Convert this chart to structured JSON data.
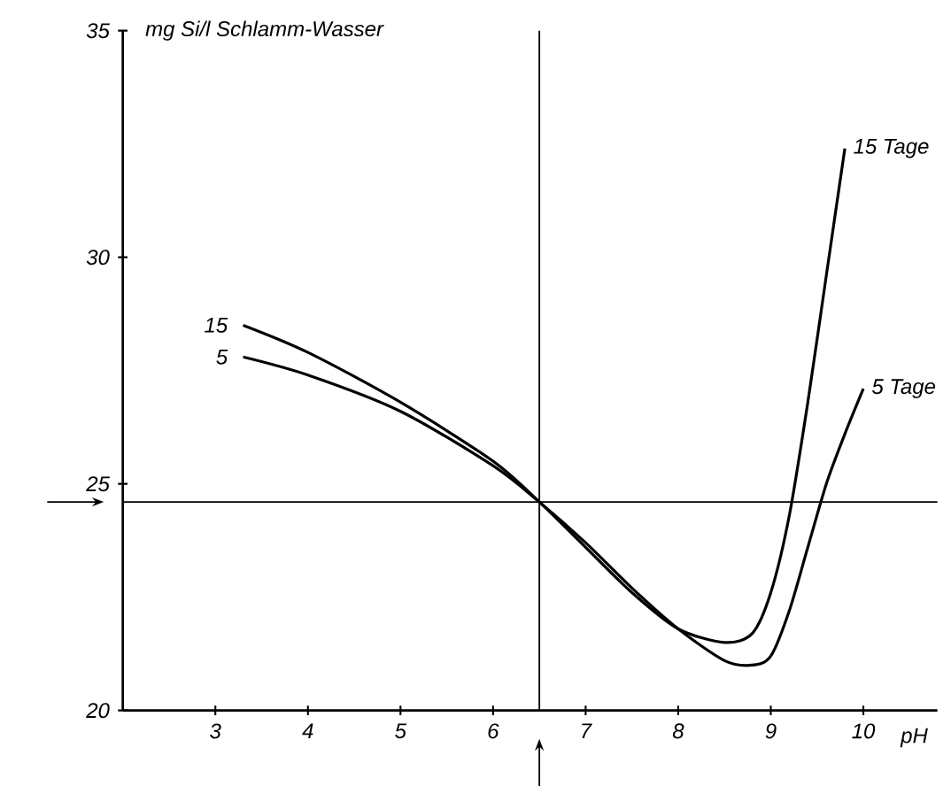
{
  "chart_data": {
    "type": "line",
    "ylabel": "mg Si/l Schlamm-Wasser",
    "xlabel": "pH",
    "xlim": [
      2,
      10.8
    ],
    "ylim": [
      20,
      35
    ],
    "xticks": [
      3,
      4,
      5,
      6,
      7,
      8,
      9,
      10
    ],
    "yticks": [
      20,
      25,
      30,
      35
    ],
    "grid": false,
    "legend": false,
    "marker": "none",
    "line_style": "solid",
    "series": [
      {
        "name": "15 Tage",
        "color": "#000000",
        "x": [
          3.3,
          4,
          5,
          6,
          6.5,
          7,
          7.5,
          8,
          8.5,
          8.8,
          9,
          9.2,
          9.4,
          9.6,
          9.8
        ],
        "values": [
          28.5,
          27.9,
          26.8,
          25.5,
          24.6,
          23.6,
          22.6,
          21.8,
          21.5,
          21.7,
          22.6,
          24.3,
          26.8,
          29.6,
          32.4
        ]
      },
      {
        "name": "5 Tage",
        "color": "#000000",
        "x": [
          3.3,
          4,
          5,
          6,
          6.5,
          7,
          7.5,
          8,
          8.5,
          8.8,
          9,
          9.2,
          9.4,
          9.6,
          9.8,
          10
        ],
        "values": [
          27.8,
          27.4,
          26.6,
          25.4,
          24.6,
          23.7,
          22.7,
          21.8,
          21.1,
          21.0,
          21.2,
          22.2,
          23.6,
          25.0,
          26.1,
          27.1
        ]
      }
    ],
    "annotations": [
      {
        "text": "15",
        "x": 3.3,
        "y": 28.5
      },
      {
        "text": "5",
        "x": 3.3,
        "y": 27.8
      }
    ],
    "ref_lines": [
      {
        "axis": "y",
        "value": 24.6
      },
      {
        "axis": "x",
        "value": 6.5
      }
    ]
  }
}
